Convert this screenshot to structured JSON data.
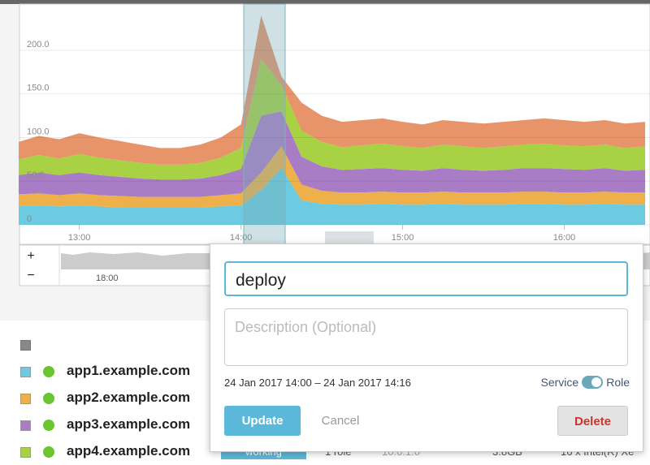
{
  "chart_data": {
    "type": "area",
    "stacked": true,
    "x": [
      12.625,
      12.75,
      12.875,
      13,
      13.125,
      13.25,
      13.375,
      13.5,
      13.625,
      13.75,
      13.875,
      14,
      14.125,
      14.25,
      14.375,
      14.5,
      14.625,
      14.75,
      14.875,
      15,
      15.125,
      15.25,
      15.375,
      15.5,
      15.625,
      15.75,
      15.875,
      16,
      16.125,
      16.25,
      16.375,
      16.5
    ],
    "series": [
      {
        "color": "#6ccbe0",
        "values": [
          22,
          22,
          21,
          22,
          21,
          20,
          20,
          20,
          20,
          20,
          21,
          22,
          40,
          65,
          28,
          24,
          23,
          23,
          24,
          23,
          23,
          24,
          23,
          23,
          23,
          24,
          24,
          23,
          23,
          24,
          23,
          23
        ]
      },
      {
        "color": "#eeb04a",
        "values": [
          13,
          14,
          13,
          14,
          13,
          13,
          12,
          12,
          12,
          12,
          13,
          14,
          20,
          25,
          18,
          15,
          14,
          14,
          14,
          14,
          14,
          14,
          14,
          14,
          14,
          14,
          14,
          14,
          14,
          14,
          14,
          14
        ]
      },
      {
        "color": "#a97dc6",
        "values": [
          22,
          24,
          23,
          24,
          23,
          22,
          21,
          20,
          20,
          21,
          23,
          28,
          65,
          40,
          32,
          28,
          26,
          27,
          27,
          26,
          25,
          27,
          26,
          25,
          26,
          27,
          27,
          27,
          26,
          27,
          25,
          26
        ]
      },
      {
        "color": "#a8d144",
        "values": [
          18,
          20,
          19,
          21,
          20,
          19,
          18,
          17,
          17,
          18,
          20,
          24,
          65,
          30,
          30,
          28,
          26,
          27,
          28,
          27,
          26,
          27,
          27,
          26,
          27,
          27,
          28,
          27,
          27,
          27,
          26,
          27
        ]
      },
      {
        "color": "#e8946a",
        "values": [
          20,
          22,
          22,
          24,
          23,
          22,
          21,
          19,
          19,
          21,
          23,
          27,
          50,
          10,
          32,
          30,
          29,
          29,
          29,
          28,
          27,
          28,
          28,
          28,
          28,
          28,
          29,
          29,
          28,
          28,
          28,
          28
        ]
      }
    ],
    "xlim": [
      12.63,
      16.53
    ],
    "xticks": [
      {
        "value": 13,
        "label": "13:00"
      },
      {
        "value": 14,
        "label": "14:00"
      },
      {
        "value": 15,
        "label": "15:00"
      },
      {
        "value": 16,
        "label": "16:00"
      }
    ],
    "ylim": [
      0,
      250
    ],
    "yticks": [
      0,
      {
        "value": 50,
        "label": "50.0"
      },
      {
        "value": 100,
        "label": "100.0"
      },
      {
        "value": 150,
        "label": "150.0"
      },
      {
        "value": 200,
        "label": "200.0"
      }
    ],
    "grid": true
  },
  "navigator": {
    "zoom_in": "+",
    "zoom_out": "−",
    "tick": "18:00"
  },
  "hosts": [
    {
      "name": "app1.example.com"
    },
    {
      "name": "app2.example.com"
    },
    {
      "name": "app3.example.com"
    },
    {
      "name": "app4.example.com",
      "status": "working",
      "roles": "1 role",
      "ip": "10.0.1.0",
      "memory": "3.8GB",
      "cpu": "16 x Intel(R) Xe"
    }
  ],
  "dialog": {
    "title_value": "deploy",
    "description_placeholder": "Description (Optional)",
    "range": "24 Jan 2017 14:00 – 24 Jan 2017 14:16",
    "toggle_left": "Service",
    "toggle_right": "Role",
    "update": "Update",
    "cancel": "Cancel",
    "delete": "Delete"
  }
}
